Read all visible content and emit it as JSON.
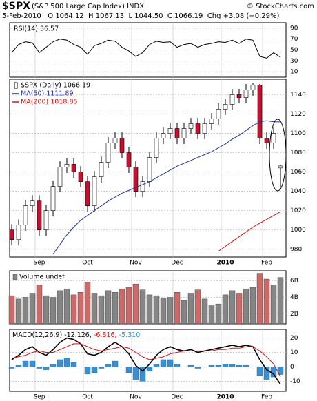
{
  "header": {
    "symbol": "$SPX",
    "name": "(S&P 500 Large Cap Index) INDX",
    "source": "© StockCharts.com",
    "quote": "5-Feb-2010   O 1064.12  H 1067.13  L 1044.50  C 1066.19  Chg +3.08 (+0.29%)"
  },
  "chart_data": [
    {
      "type": "line",
      "title": "RSI(14) 36.57",
      "ylim": [
        0,
        100
      ],
      "yticks": [
        10,
        30,
        50,
        70,
        90
      ],
      "grid": true,
      "series": [
        {
          "color": "#000000",
          "values": [
            45,
            60,
            65,
            63,
            45,
            55,
            65,
            70,
            68,
            60,
            55,
            42,
            58,
            62,
            68,
            66,
            55,
            48,
            38,
            45,
            60,
            66,
            64,
            65,
            55,
            60,
            62,
            55,
            60,
            62,
            65,
            64,
            68,
            62,
            70,
            68,
            38,
            35,
            45,
            36.57
          ]
        }
      ]
    },
    {
      "type": "candlestick",
      "ylim": [
        972,
        1156
      ],
      "yticks": [
        980,
        1000,
        1020,
        1040,
        1060,
        1080,
        1100,
        1120,
        1140
      ],
      "grid": true,
      "categories": [
        null,
        null,
        null,
        null,
        "Sep",
        null,
        null,
        null,
        null,
        null,
        null,
        "Oct",
        null,
        null,
        null,
        null,
        null,
        null,
        "Nov",
        null,
        null,
        null,
        null,
        null,
        "Dec",
        null,
        null,
        null,
        null,
        null,
        null,
        "2010",
        null,
        null,
        null,
        null,
        null,
        "Feb",
        null,
        null
      ],
      "candles": {
        "name": "$SPX (Daily) 1066.19",
        "up_color": "#ffffff",
        "down_color": "#c8102e",
        "open": [
          1000,
          990,
          1005,
          1025,
          1030,
          1000,
          1020,
          1045,
          1065,
          1068,
          1060,
          1050,
          1025,
          1055,
          1070,
          1090,
          1095,
          1080,
          1065,
          1040,
          1050,
          1075,
          1095,
          1100,
          1105,
          1095,
          1105,
          1110,
          1100,
          1110,
          1115,
          1125,
          1130,
          1140,
          1137,
          1145,
          1150,
          1095,
          1090,
          1064.12
        ],
        "high": [
          1006,
          1011,
          1031,
          1036,
          1036,
          1026,
          1051,
          1071,
          1074,
          1074,
          1066,
          1056,
          1061,
          1076,
          1096,
          1101,
          1101,
          1086,
          1071,
          1056,
          1081,
          1101,
          1106,
          1111,
          1111,
          1111,
          1116,
          1116,
          1116,
          1121,
          1131,
          1136,
          1146,
          1146,
          1151,
          1152,
          1151,
          1101,
          1106,
          1067.13
        ],
        "low": [
          984,
          984,
          999,
          1019,
          994,
          994,
          1014,
          1039,
          1059,
          1054,
          1044,
          1019,
          1019,
          1049,
          1064,
          1084,
          1074,
          1059,
          1034,
          1034,
          1044,
          1069,
          1089,
          1094,
          1089,
          1089,
          1099,
          1094,
          1094,
          1104,
          1109,
          1119,
          1124,
          1131,
          1131,
          1139,
          1089,
          1084,
          1084,
          1044.5
        ],
        "close": [
          990,
          1005,
          1025,
          1030,
          1000,
          1020,
          1045,
          1065,
          1068,
          1060,
          1050,
          1025,
          1055,
          1070,
          1090,
          1095,
          1080,
          1065,
          1040,
          1050,
          1075,
          1095,
          1100,
          1105,
          1095,
          1105,
          1110,
          1100,
          1110,
          1115,
          1125,
          1130,
          1140,
          1137,
          1145,
          1150,
          1095,
          1090,
          1100,
          1066.19
        ]
      },
      "series": [
        {
          "name": "MA(50) 1111.89",
          "color": "#1f2f9f",
          "values": [
            null,
            null,
            null,
            null,
            null,
            null,
            975,
            985,
            995,
            1003,
            1010,
            1015,
            1020,
            1025,
            1030,
            1034,
            1038,
            1041,
            1044,
            1047,
            1050,
            1054,
            1058,
            1062,
            1066,
            1069,
            1072,
            1075,
            1078,
            1081,
            1085,
            1089,
            1094,
            1098,
            1103,
            1108,
            1112,
            1113,
            1112,
            1111.89
          ]
        },
        {
          "name": "MA(200) 1018.85",
          "color": "#e01010",
          "values": [
            null,
            null,
            null,
            null,
            null,
            null,
            null,
            null,
            null,
            null,
            null,
            null,
            null,
            null,
            null,
            null,
            null,
            null,
            null,
            null,
            null,
            null,
            null,
            null,
            null,
            null,
            null,
            null,
            null,
            null,
            978,
            983,
            988,
            993,
            998,
            1003,
            1007,
            1011,
            1015,
            1018.85
          ]
        }
      ]
    },
    {
      "type": "bar",
      "title": "Volume undef",
      "ylim": [
        0.8,
        7.2
      ],
      "yticks": [
        {
          "value": 2,
          "label": "2B"
        },
        {
          "value": 4,
          "label": "4B"
        },
        {
          "value": 6,
          "label": "6B"
        }
      ],
      "grid": true,
      "up_color": "#858585",
      "down_color": "#cc6a6a",
      "values": [
        4.2,
        3.8,
        4.0,
        4.5,
        5.5,
        4.2,
        4.0,
        4.8,
        5.0,
        4.3,
        4.6,
        5.8,
        4.5,
        4.2,
        4.8,
        4.6,
        5.0,
        5.2,
        5.6,
        4.9,
        4.3,
        4.2,
        3.9,
        4.0,
        4.6,
        3.6,
        4.5,
        4.9,
        3.8,
        3.0,
        3.2,
        4.3,
        4.8,
        4.5,
        5.0,
        5.2,
        6.9,
        6.2,
        5.5,
        6.4
      ]
    },
    {
      "type": "macd",
      "title": "MACD(12,26,9)",
      "ylim": [
        -17,
        26
      ],
      "yticks": [
        -10,
        0,
        10,
        20
      ],
      "grid": true,
      "categories": [
        null,
        null,
        null,
        null,
        "Sep",
        null,
        null,
        null,
        null,
        null,
        null,
        "Oct",
        null,
        null,
        null,
        null,
        null,
        null,
        "Nov",
        null,
        null,
        null,
        null,
        null,
        "Dec",
        null,
        null,
        null,
        null,
        null,
        null,
        "2010",
        null,
        null,
        null,
        null,
        null,
        "Feb",
        null,
        null
      ],
      "series": [
        {
          "name": "-12.126,",
          "color": "#000000",
          "values": [
            5,
            8,
            12,
            14,
            10,
            8,
            12,
            17,
            20,
            19,
            16,
            9,
            8,
            10,
            14,
            17,
            14,
            9,
            1,
            -3,
            2,
            8,
            12,
            14,
            12,
            11,
            12,
            10,
            11,
            12,
            13,
            14,
            15,
            14,
            15,
            14,
            5,
            -2,
            -5,
            -12.126
          ]
        },
        {
          "name": "-6.816,",
          "color": "#e01010",
          "values": [
            6,
            7,
            8,
            10,
            11,
            10,
            10,
            12,
            14,
            16,
            16,
            14,
            12,
            11,
            12,
            13,
            14,
            13,
            10,
            7,
            5,
            6,
            7,
            9,
            10,
            11,
            11,
            11,
            11,
            11,
            12,
            12,
            13,
            13,
            14,
            14,
            11,
            7,
            2,
            -6.816
          ]
        },
        {
          "name": "-5.310",
          "color": "#3a8fd0",
          "kind": "bar",
          "values": [
            -1,
            1,
            4,
            4,
            -1,
            -2,
            2,
            5,
            6,
            3,
            0,
            -5,
            -4,
            -1,
            2,
            4,
            0,
            -4,
            -9,
            -10,
            -3,
            2,
            5,
            5,
            2,
            0,
            1,
            -1,
            0,
            1,
            1,
            2,
            2,
            1,
            1,
            0,
            -6,
            -9,
            -7,
            -5.31
          ]
        }
      ]
    }
  ]
}
